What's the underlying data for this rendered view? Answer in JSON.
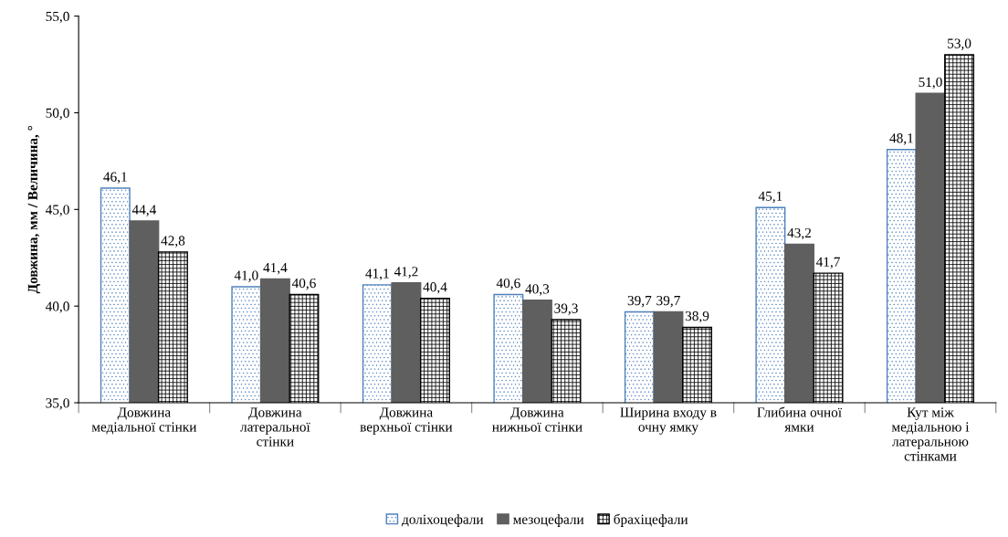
{
  "chart_data": {
    "type": "bar",
    "ylabel": "Довжина, мм / Величина, °",
    "categories": [
      "Довжина\nмедіальної стінки",
      "Довжина\nлатеральної\nстінки",
      "Довжина\nверхньої стінки",
      "Довжина\nнижньої стінки",
      "Ширина входу в\nочну ямку",
      "Глибина очної\nямки",
      "Кут між\nмедіальною і\nлатеральною\nстінками"
    ],
    "series": [
      {
        "name": "доліхоцефали",
        "color": "#4f81bd",
        "values": [
          46.1,
          41.0,
          41.1,
          40.6,
          39.7,
          45.1,
          48.1
        ],
        "value_labels": [
          "46,1",
          "41,0",
          "41,1",
          "40,6",
          "39,7",
          "45,1",
          "48,1"
        ]
      },
      {
        "name": "мезоцефали",
        "color": "#5f5f5f",
        "values": [
          44.4,
          41.4,
          41.2,
          40.3,
          39.7,
          43.2,
          51.0
        ],
        "value_labels": [
          "44,4",
          "41,4",
          "41,2",
          "40,3",
          "39,7",
          "43,2",
          "51,0"
        ]
      },
      {
        "name": "брахіцефали",
        "color": "#000000",
        "values": [
          42.8,
          40.6,
          40.4,
          39.3,
          38.9,
          41.7,
          53.0
        ],
        "value_labels": [
          "42,8",
          "40,6",
          "40,4",
          "39,3",
          "38,9",
          "41,7",
          "53,0"
        ]
      }
    ],
    "ylim": [
      35,
      55
    ],
    "yticks": [
      {
        "value": 35,
        "label": "35,0"
      },
      {
        "value": 40,
        "label": "40,0"
      },
      {
        "value": 45,
        "label": "45,0"
      },
      {
        "value": 50,
        "label": "50,0"
      },
      {
        "value": 55,
        "label": "55,0"
      }
    ],
    "grid": false,
    "legend": "bottom"
  }
}
